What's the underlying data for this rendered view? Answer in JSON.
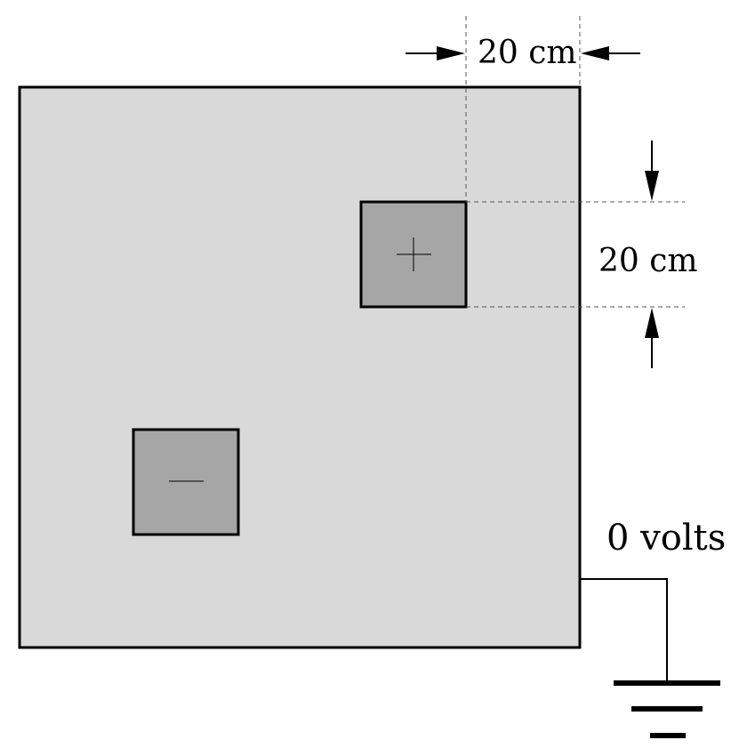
{
  "diagram": {
    "horizontal_dimension_label": "20 cm",
    "vertical_dimension_label": "20 cm",
    "ground_label": "0 volts",
    "positive_symbol": "+",
    "negative_symbol": "—"
  },
  "colors": {
    "background": "#ffffff",
    "large_plate_fill": "#d9d9d9",
    "small_square_fill": "#a6a6a6",
    "stroke": "#000000",
    "dashed_line": "#555555"
  }
}
